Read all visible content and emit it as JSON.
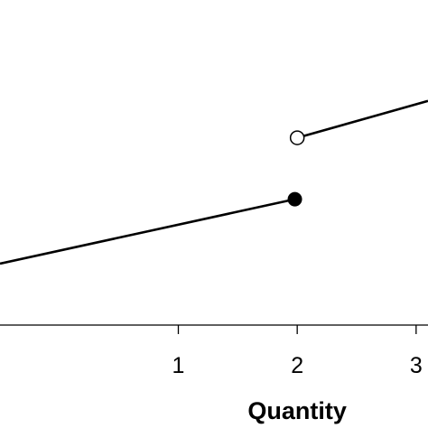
{
  "chart_data": {
    "type": "line",
    "title": "",
    "xlabel": "Quantity",
    "ylabel": "",
    "xlim": [
      -0.5,
      3.1
    ],
    "ylim": [
      0,
      10
    ],
    "x_ticks": [
      {
        "value": 1,
        "label": "1"
      },
      {
        "value": 2,
        "label": "2"
      },
      {
        "value": 3,
        "label": "3"
      }
    ],
    "grid": false,
    "series": [
      {
        "segment": "lower",
        "points": [
          [
            -0.5,
            2.0
          ],
          [
            1.98,
            4.1
          ]
        ],
        "end_marker": "closed"
      },
      {
        "segment": "upper",
        "points": [
          [
            2.0,
            6.1
          ],
          [
            3.1,
            7.3
          ]
        ],
        "start_marker": "open"
      }
    ],
    "colors": {
      "line": "#000000",
      "closed_marker": "#000000",
      "open_marker_fill": "#ffffff"
    }
  }
}
